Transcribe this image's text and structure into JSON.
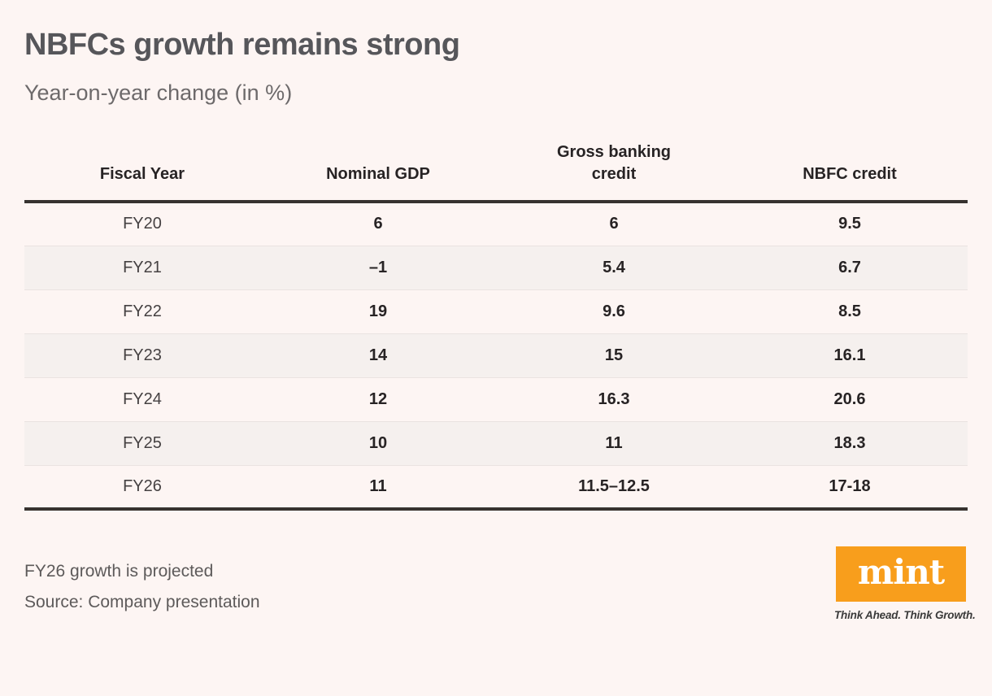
{
  "page": {
    "title": "NBFCs growth remains strong",
    "subtitle": "Year-on-year change (in %)"
  },
  "table": {
    "columns": [
      "Fiscal Year",
      "Nominal GDP",
      "Gross banking credit",
      "NBFC credit"
    ],
    "rows": [
      [
        "FY20",
        "6",
        "6",
        "9.5"
      ],
      [
        "FY21",
        "–1",
        "5.4",
        "6.7"
      ],
      [
        "FY22",
        "19",
        "9.6",
        "8.5"
      ],
      [
        "FY23",
        "14",
        "15",
        "16.1"
      ],
      [
        "FY24",
        "12",
        "16.3",
        "20.6"
      ],
      [
        "FY25",
        "10",
        "11",
        "18.3"
      ],
      [
        "FY26",
        "11",
        "11.5–12.5",
        "17-18"
      ]
    ]
  },
  "footer": {
    "note": "FY26 growth is projected",
    "source": "Source: Company presentation",
    "logo_text": "mint",
    "logo_tagline": "Think Ahead. Think Growth."
  },
  "colors": {
    "background": "#fdf5f3",
    "row_stripe": "#f5f0ee",
    "rule_dark": "#37322f",
    "logo_orange": "#F89E1C"
  },
  "chart_data": {
    "type": "table",
    "title": "NBFCs growth remains strong",
    "subtitle": "Year-on-year change (in %)",
    "columns": [
      "Fiscal Year",
      "Nominal GDP",
      "Gross banking credit",
      "NBFC credit"
    ],
    "rows": [
      [
        "FY20",
        "6",
        "6",
        "9.5"
      ],
      [
        "FY21",
        "–1",
        "5.4",
        "6.7"
      ],
      [
        "FY22",
        "19",
        "9.6",
        "8.5"
      ],
      [
        "FY23",
        "14",
        "15",
        "16.1"
      ],
      [
        "FY24",
        "12",
        "16.3",
        "20.6"
      ],
      [
        "FY25",
        "10",
        "11",
        "18.3"
      ],
      [
        "FY26",
        "11",
        "11.5–12.5",
        "17-18"
      ]
    ],
    "notes": [
      "FY26 growth is projected"
    ],
    "source": "Source: Company presentation",
    "layout_hints": {
      "zebra_striping": true,
      "thick_rules_above_and_below_body": true,
      "values_bold": true
    }
  }
}
